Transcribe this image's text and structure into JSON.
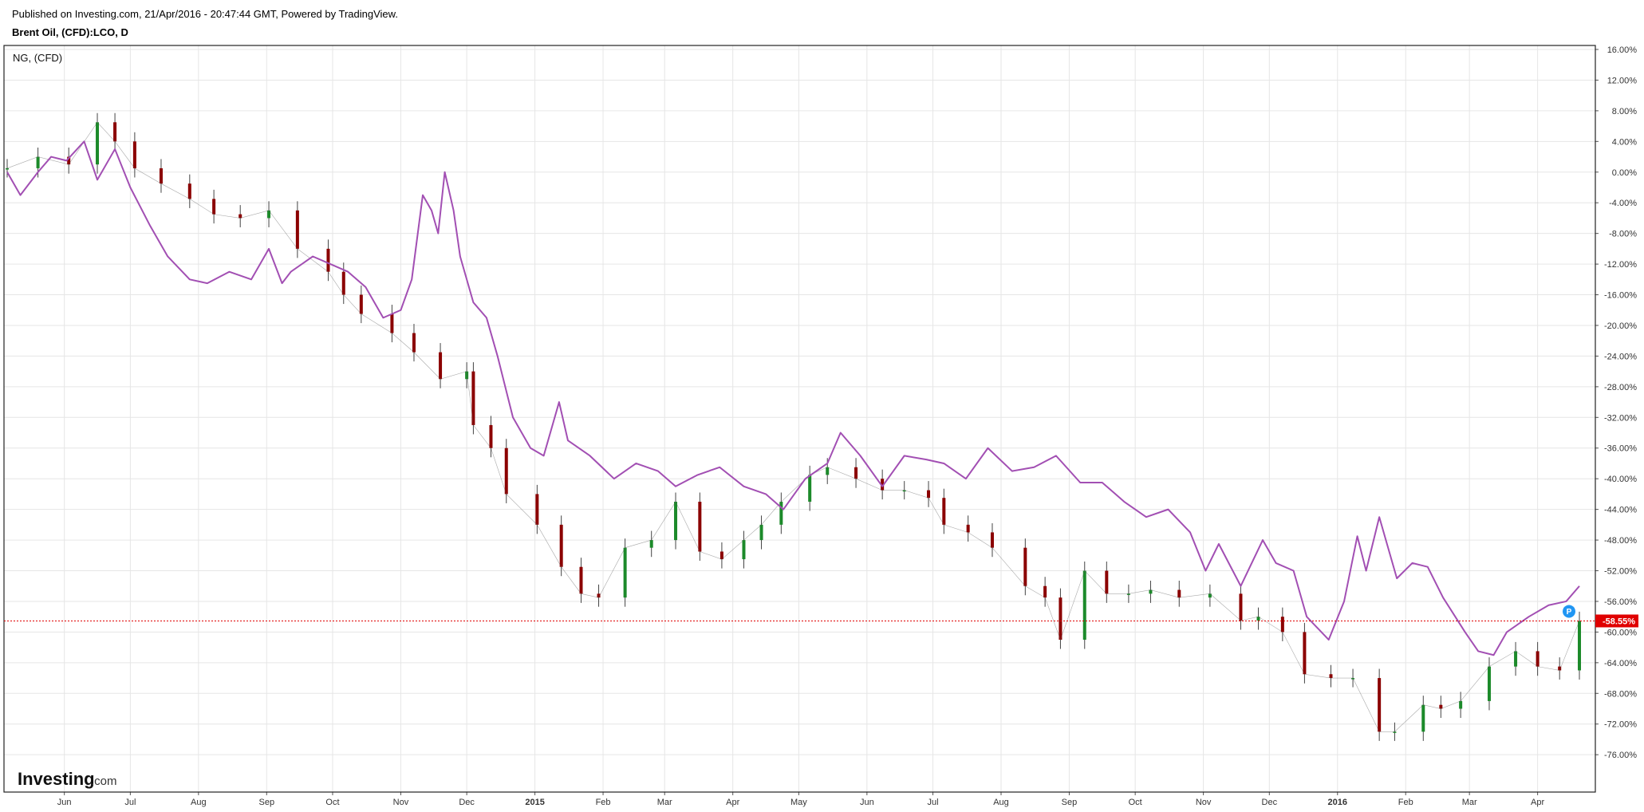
{
  "header": {
    "published": "Published on Investing.com, 21/Apr/2016 - 20:47:44 GMT, Powered by TradingView.",
    "symbol": "Brent Oil, (CFD):LCO, D"
  },
  "legend": {
    "compare_label": "NG,  (CFD)"
  },
  "logo": {
    "brand": "Investing",
    "suffix": ".com"
  },
  "colors": {
    "up_candle": "#1c8a2a",
    "down_candle": "#8b0000",
    "compare_line": "#a24fb3",
    "current_line": "#e00000",
    "grid": "#e6e6e6",
    "p_marker": "#2196f3"
  },
  "chart_data": {
    "type": "line",
    "title": "Brent Oil, (CFD):LCO, D",
    "x_type": "date",
    "y_unit": "%",
    "ylim": [
      -79,
      16
    ],
    "y_ticks": [
      "16.00%",
      "12.00%",
      "8.00%",
      "4.00%",
      "0.00%",
      "-4.00%",
      "-8.00%",
      "-12.00%",
      "-16.00%",
      "-20.00%",
      "-24.00%",
      "-28.00%",
      "-32.00%",
      "-36.00%",
      "-40.00%",
      "-44.00%",
      "-48.00%",
      "-52.00%",
      "-56.00%",
      "-60.00%",
      "-64.00%",
      "-68.00%",
      "-72.00%",
      "-76.00%"
    ],
    "y_tick_values": [
      16,
      12,
      8,
      4,
      0,
      -4,
      -8,
      -12,
      -16,
      -20,
      -24,
      -28,
      -32,
      -36,
      -40,
      -44,
      -48,
      -52,
      -56,
      -60,
      -64,
      -68,
      -72,
      -76
    ],
    "x_ticks": [
      "Jun",
      "Jul",
      "Aug",
      "Sep",
      "Oct",
      "Nov",
      "Dec",
      "2015",
      "Feb",
      "Mar",
      "Apr",
      "May",
      "Jun",
      "Jul",
      "Aug",
      "Sep",
      "Oct",
      "Nov",
      "Dec",
      "2016",
      "Feb",
      "Mar",
      "Apr"
    ],
    "x_tick_dates": [
      "2014-06-01",
      "2014-07-01",
      "2014-08-01",
      "2014-09-01",
      "2014-10-01",
      "2014-11-01",
      "2014-12-01",
      "2015-01-01",
      "2015-02-01",
      "2015-03-01",
      "2015-04-01",
      "2015-05-01",
      "2015-06-01",
      "2015-07-01",
      "2015-08-01",
      "2015-09-01",
      "2015-10-01",
      "2015-11-01",
      "2015-12-01",
      "2016-01-01",
      "2016-02-01",
      "2016-03-01",
      "2016-04-01"
    ],
    "x_bold_ticks": [
      "2015",
      "2016"
    ],
    "current_value": -58.55,
    "current_label": "-58.55%",
    "grid": true,
    "series": [
      {
        "name": "Brent Oil, (CFD):LCO, D",
        "style": "candlestick",
        "x": [
          "2014-05-06",
          "2014-05-20",
          "2014-06-03",
          "2014-06-16",
          "2014-06-24",
          "2014-07-03",
          "2014-07-15",
          "2014-07-28",
          "2014-08-08",
          "2014-08-20",
          "2014-09-02",
          "2014-09-15",
          "2014-09-29",
          "2014-10-06",
          "2014-10-14",
          "2014-10-28",
          "2014-11-07",
          "2014-11-19",
          "2014-12-01",
          "2014-12-04",
          "2014-12-12",
          "2014-12-19",
          "2015-01-02",
          "2015-01-13",
          "2015-01-22",
          "2015-01-30",
          "2015-02-11",
          "2015-02-23",
          "2015-03-06",
          "2015-03-17",
          "2015-03-27",
          "2015-04-06",
          "2015-04-14",
          "2015-04-23",
          "2015-05-06",
          "2015-05-14",
          "2015-05-27",
          "2015-06-08",
          "2015-06-18",
          "2015-06-29",
          "2015-07-06",
          "2015-07-17",
          "2015-07-28",
          "2015-08-12",
          "2015-08-21",
          "2015-08-28",
          "2015-09-08",
          "2015-09-18",
          "2015-09-28",
          "2015-10-08",
          "2015-10-21",
          "2015-11-04",
          "2015-11-18",
          "2015-11-26",
          "2015-12-07",
          "2015-12-17",
          "2015-12-29",
          "2016-01-08",
          "2016-01-20",
          "2016-01-27",
          "2016-02-09",
          "2016-02-17",
          "2016-02-26",
          "2016-03-10",
          "2016-03-22",
          "2016-04-01",
          "2016-04-11",
          "2016-04-20"
        ],
        "values": [
          0.5,
          2.0,
          1.0,
          6.5,
          4.0,
          0.5,
          -1.5,
          -3.5,
          -5.5,
          -6.0,
          -5.0,
          -10.0,
          -13.0,
          -16.0,
          -18.5,
          -21.0,
          -23.5,
          -27.0,
          -26.0,
          -33.0,
          -36.0,
          -42.0,
          -46.0,
          -51.5,
          -55.0,
          -55.5,
          -49.0,
          -48.0,
          -43.0,
          -49.5,
          -50.5,
          -48.0,
          -46.0,
          -43.0,
          -39.5,
          -38.5,
          -40.0,
          -41.5,
          -41.5,
          -42.5,
          -46.0,
          -47.0,
          -49.0,
          -54.0,
          -55.5,
          -61.0,
          -52.0,
          -55.0,
          -55.0,
          -54.5,
          -55.5,
          -55.0,
          -58.5,
          -58.0,
          -60.0,
          -65.5,
          -66.0,
          -66.0,
          -73.0,
          -73.0,
          -69.5,
          -70.0,
          -69.0,
          -64.5,
          -62.5,
          -64.5,
          -65.0,
          -58.55
        ]
      },
      {
        "name": "NG,  (CFD)",
        "style": "line",
        "x": [
          "2014-05-06",
          "2014-05-12",
          "2014-05-20",
          "2014-05-26",
          "2014-06-02",
          "2014-06-10",
          "2014-06-16",
          "2014-06-24",
          "2014-07-01",
          "2014-07-10",
          "2014-07-18",
          "2014-07-28",
          "2014-08-05",
          "2014-08-15",
          "2014-08-25",
          "2014-09-02",
          "2014-09-08",
          "2014-09-12",
          "2014-09-22",
          "2014-09-30",
          "2014-10-08",
          "2014-10-16",
          "2014-10-24",
          "2014-11-01",
          "2014-11-06",
          "2014-11-11",
          "2014-11-15",
          "2014-11-18",
          "2014-11-21",
          "2014-11-25",
          "2014-11-28",
          "2014-12-04",
          "2014-12-10",
          "2014-12-15",
          "2014-12-22",
          "2014-12-30",
          "2015-01-05",
          "2015-01-12",
          "2015-01-16",
          "2015-01-26",
          "2015-02-06",
          "2015-02-16",
          "2015-02-26",
          "2015-03-06",
          "2015-03-16",
          "2015-03-26",
          "2015-04-06",
          "2015-04-16",
          "2015-04-24",
          "2015-05-04",
          "2015-05-14",
          "2015-05-20",
          "2015-05-29",
          "2015-06-08",
          "2015-06-18",
          "2015-06-28",
          "2015-07-06",
          "2015-07-16",
          "2015-07-26",
          "2015-08-06",
          "2015-08-16",
          "2015-08-26",
          "2015-09-06",
          "2015-09-16",
          "2015-09-26",
          "2015-10-06",
          "2015-10-16",
          "2015-10-26",
          "2015-11-02",
          "2015-11-08",
          "2015-11-18",
          "2015-11-28",
          "2015-12-04",
          "2015-12-12",
          "2015-12-18",
          "2015-12-28",
          "2016-01-04",
          "2016-01-10",
          "2016-01-14",
          "2016-01-20",
          "2016-01-28",
          "2016-02-04",
          "2016-02-11",
          "2016-02-18",
          "2016-02-28",
          "2016-03-05",
          "2016-03-12",
          "2016-03-18",
          "2016-03-28",
          "2016-04-06",
          "2016-04-14",
          "2016-04-20"
        ],
        "values": [
          0.0,
          -3.0,
          0.0,
          2.0,
          1.5,
          4.0,
          -1.0,
          3.0,
          -2.0,
          -7.0,
          -11.0,
          -14.0,
          -14.5,
          -13.0,
          -14.0,
          -10.0,
          -14.5,
          -13.0,
          -11.0,
          -12.0,
          -13.0,
          -15.0,
          -19.0,
          -18.0,
          -14.0,
          -3.0,
          -5.0,
          -8.0,
          0.0,
          -5.0,
          -11.0,
          -17.0,
          -19.0,
          -24.0,
          -32.0,
          -36.0,
          -37.0,
          -30.0,
          -35.0,
          -37.0,
          -40.0,
          -38.0,
          -39.0,
          -41.0,
          -39.5,
          -38.5,
          -41.0,
          -42.0,
          -44.0,
          -40.0,
          -38.0,
          -34.0,
          -37.0,
          -41.0,
          -37.0,
          -37.5,
          -38.0,
          -40.0,
          -36.0,
          -39.0,
          -38.5,
          -37.0,
          -40.5,
          -40.5,
          -43.0,
          -45.0,
          -44.0,
          -47.0,
          -52.0,
          -48.5,
          -54.0,
          -48.0,
          -51.0,
          -52.0,
          -58.0,
          -61.0,
          -56.0,
          -47.5,
          -52.0,
          -45.0,
          -53.0,
          -51.0,
          -51.5,
          -55.5,
          -60.0,
          -62.5,
          -63.0,
          -60.0,
          -58.0,
          -56.5,
          -56.0,
          -54.0
        ]
      }
    ]
  }
}
